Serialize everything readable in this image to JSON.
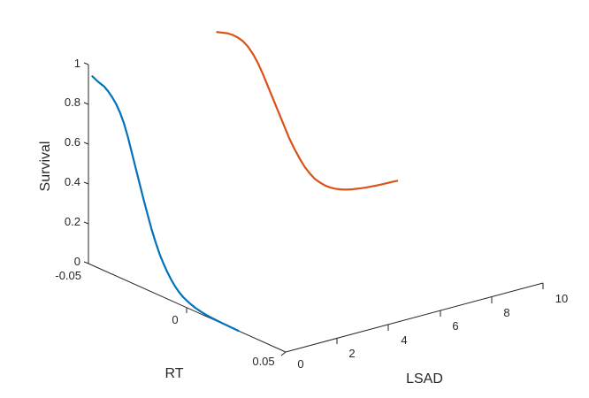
{
  "chart_data": {
    "type": "line",
    "title": "",
    "zlabel": "Survival",
    "xlabel": "RT",
    "ylabel": "LSAD",
    "zlim": [
      0,
      1
    ],
    "rt_lim": [
      -0.05,
      0.05
    ],
    "lsad_lim": [
      0,
      10
    ],
    "grid": false,
    "z_ticks": [
      "0",
      "0.2",
      "0.4",
      "0.6",
      "0.8",
      "1"
    ],
    "rt_ticks": [
      "-0.05",
      "0",
      "0.05"
    ],
    "lsad_ticks": [
      "0",
      "2",
      "4",
      "6",
      "8",
      "10"
    ],
    "series": [
      {
        "color": "#0072BD",
        "rt": [
          -0.048,
          -0.045,
          -0.042,
          -0.04,
          -0.038,
          -0.036,
          -0.034,
          -0.032,
          -0.03,
          -0.028,
          -0.026,
          -0.024,
          -0.022,
          -0.02,
          -0.018,
          -0.016,
          -0.014,
          -0.012,
          -0.01,
          -0.008,
          -0.006,
          -0.004,
          -0.002,
          0.0,
          0.002,
          0.004,
          0.006,
          0.008,
          0.01,
          0.012,
          0.014,
          0.016,
          0.018,
          0.02,
          0.022,
          0.024,
          0.026
        ],
        "lsad": [
          0,
          0,
          0,
          0,
          0,
          0,
          0,
          0,
          0,
          0,
          0,
          0,
          0,
          0,
          0,
          0,
          0,
          0,
          0,
          0,
          0,
          0,
          0,
          0,
          0,
          0,
          0,
          0,
          0,
          0,
          0,
          0,
          0,
          0,
          0,
          0,
          0
        ],
        "survival": [
          0.95,
          0.935,
          0.925,
          0.91,
          0.89,
          0.865,
          0.83,
          0.785,
          0.725,
          0.655,
          0.585,
          0.515,
          0.445,
          0.38,
          0.315,
          0.26,
          0.21,
          0.17,
          0.135,
          0.105,
          0.08,
          0.06,
          0.045,
          0.035,
          0.026,
          0.019,
          0.014,
          0.01,
          0.007,
          0.005,
          0.004,
          0.003,
          0.002,
          0.0015,
          0.001,
          0.0005,
          0.0
        ]
      },
      {
        "color": "#D95319",
        "rt": [
          -0.05,
          -0.05,
          -0.05,
          -0.05,
          -0.05,
          -0.05,
          -0.05,
          -0.05,
          -0.05,
          -0.05,
          -0.05,
          -0.05,
          -0.05,
          -0.05,
          -0.05,
          -0.05,
          -0.05,
          -0.05,
          -0.05,
          -0.05,
          -0.05,
          -0.05,
          -0.05,
          -0.05,
          -0.05,
          -0.05,
          -0.05,
          -0.05,
          -0.05,
          -0.05,
          -0.05,
          -0.05,
          -0.05,
          -0.05,
          -0.05,
          -0.05
        ],
        "lsad": [
          5.0,
          5.2,
          5.4,
          5.6,
          5.8,
          6.0,
          6.2,
          6.4,
          6.6,
          6.8,
          7.0,
          7.2,
          7.4,
          7.6,
          7.8,
          8.0,
          8.2,
          8.4,
          8.6,
          8.8,
          9.0,
          9.2,
          9.4,
          9.6,
          9.8,
          10.0,
          10.2,
          10.4,
          10.6,
          10.8,
          11.0,
          11.2,
          11.4,
          11.6,
          11.8,
          12.0
        ],
        "survival": [
          0.99,
          0.98,
          0.97,
          0.955,
          0.935,
          0.91,
          0.875,
          0.83,
          0.775,
          0.71,
          0.64,
          0.57,
          0.5,
          0.43,
          0.36,
          0.3,
          0.245,
          0.195,
          0.155,
          0.12,
          0.095,
          0.073,
          0.056,
          0.043,
          0.033,
          0.025,
          0.019,
          0.015,
          0.011,
          0.008,
          0.006,
          0.004,
          0.003,
          0.002,
          0.001,
          0.0
        ]
      }
    ]
  }
}
